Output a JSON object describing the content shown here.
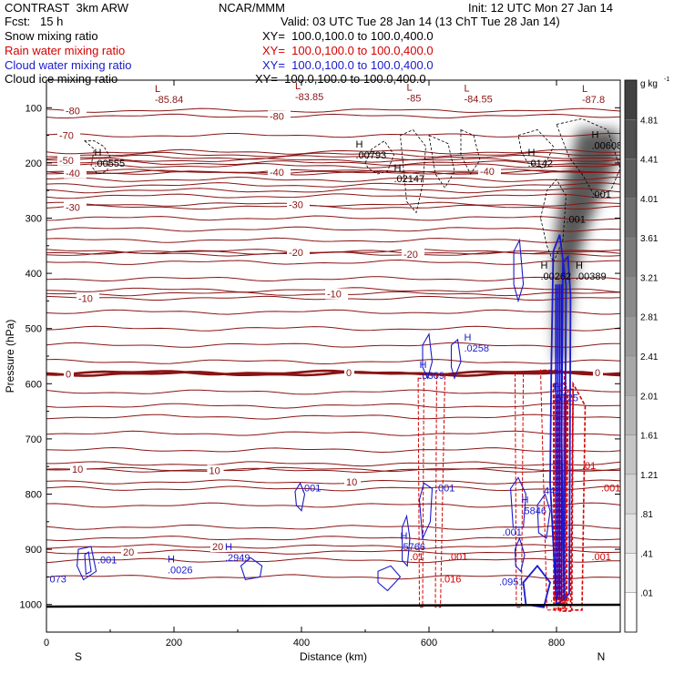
{
  "header": {
    "left1": "CONTRAST  3km ARW",
    "center1": "NCAR/MMM",
    "right1": "Init: 12 UTC Mon 27 Jan 14",
    "left2": "Fcst:   15 h",
    "right2": "Valid: 03 UTC Tue 28 Jan 14 (13 ChT Tue 28 Jan 14)",
    "fields": [
      {
        "name": "Snow mixing ratio",
        "xy": "XY=  100.0,100.0 to 100.0,400.0",
        "color": "#000000"
      },
      {
        "name": "Rain water mixing ratio",
        "xy": "XY=  100.0,100.0 to 100.0,400.0",
        "color": "#d40000"
      },
      {
        "name": "Cloud water mixing ratio",
        "xy": "XY=  100.0,100.0 to 100.0,400.0",
        "color": "#1a1acc"
      },
      {
        "name": "Cloud ice mixing ratio",
        "xy": "XY=  100.0,100.0 to 100.0,400.0",
        "color": "#000000"
      }
    ]
  },
  "chart_data": {
    "type": "contour cross-section",
    "xlabel": "Distance (km)",
    "ylabel": "Pressure (hPa)",
    "x_ticks": [
      0,
      200,
      400,
      600,
      800
    ],
    "y_ticks": [
      100,
      200,
      300,
      400,
      500,
      600,
      700,
      800,
      900,
      1000
    ],
    "xlim": [
      0,
      900
    ],
    "ylim": [
      1050,
      50
    ],
    "end_labels": {
      "left": "S",
      "right": "N"
    },
    "colorbar": {
      "unit_label": "g kg",
      "unit_exp": "-1",
      "labels": [
        "4.81",
        "4.41",
        "4.01",
        "3.61",
        "3.21",
        "2.81",
        "2.41",
        "2.01",
        "1.61",
        "1.21",
        ".81",
        ".41",
        ".01"
      ]
    },
    "temperature_contours": [
      {
        "p": 905,
        "label": "20",
        "label_x": 120
      },
      {
        "p": 895,
        "label": "20",
        "label_x": 260
      },
      {
        "p": 755,
        "label": "10",
        "label_x": 40
      },
      {
        "p": 757,
        "label": "10",
        "label_x": 255
      },
      {
        "p": 778,
        "label": "10",
        "label_x": 470
      },
      {
        "p": 582,
        "label": "0",
        "label_x": 30
      },
      {
        "p": 580,
        "label": "0",
        "label_x": 470
      },
      {
        "p": 580,
        "label": "0",
        "label_x": 860
      },
      {
        "p": 445,
        "label": "-10",
        "label_x": 50
      },
      {
        "p": 437,
        "label": "-10",
        "label_x": 440
      },
      {
        "p": 362,
        "label": "-20",
        "label_x": 380
      },
      {
        "p": 365,
        "label": "-20",
        "label_x": 560
      },
      {
        "p": 280,
        "label": "-30",
        "label_x": 30
      },
      {
        "p": 275,
        "label": "-30",
        "label_x": 380
      },
      {
        "p": 218,
        "label": "-40",
        "label_x": 30
      },
      {
        "p": 217,
        "label": "-40",
        "label_x": 350
      },
      {
        "p": 215,
        "label": "-40",
        "label_x": 680
      },
      {
        "p": 195,
        "label": "-50",
        "label_x": 20
      },
      {
        "p": 150,
        "label": "-70",
        "label_x": 20
      },
      {
        "p": 105,
        "label": "-80",
        "label_x": 30
      },
      {
        "p": 115,
        "label": "-80",
        "label_x": 350
      }
    ],
    "extrema": [
      {
        "kind": "L",
        "value": "-85.84",
        "x": 170,
        "p": 85
      },
      {
        "kind": "L",
        "value": "-83.85",
        "x": 390,
        "p": 80
      },
      {
        "kind": "L",
        "value": "-85",
        "x": 565,
        "p": 82
      },
      {
        "kind": "L",
        "value": "-84.55",
        "x": 655,
        "p": 84
      },
      {
        "kind": "L",
        "value": "-87.8",
        "x": 840,
        "p": 85
      },
      {
        "kind": "H",
        "value": ".00555",
        "x": 75,
        "p": 200,
        "color": "#000000"
      },
      {
        "kind": "H",
        "value": ".00793",
        "x": 485,
        "p": 185,
        "color": "#000000"
      },
      {
        "kind": "H",
        "value": ".02147",
        "x": 545,
        "p": 228,
        "color": "#000000"
      },
      {
        "kind": "H",
        "value": ".0142",
        "x": 755,
        "p": 200,
        "color": "#000000"
      },
      {
        "kind": "H",
        "value": ".00608",
        "x": 855,
        "p": 168,
        "color": "#000000"
      },
      {
        "kind": "H",
        "value": ".00262",
        "x": 775,
        "p": 405,
        "color": "#000000"
      },
      {
        "kind": "H",
        "value": ".00389",
        "x": 830,
        "p": 405,
        "color": "#000000"
      },
      {
        "kind": "H",
        "value": ".0309",
        "x": 585,
        "p": 585,
        "color": "#1a1acc"
      },
      {
        "kind": "H",
        "value": ".0258",
        "x": 655,
        "p": 535,
        "color": "#1a1acc"
      },
      {
        "kind": "H",
        "value": ".5725",
        "x": 795,
        "p": 625,
        "color": "#1a1acc"
      },
      {
        "kind": "H",
        "value": ".5766",
        "x": 555,
        "p": 895,
        "color": "#1a1acc"
      },
      {
        "kind": "H",
        "value": ".2949",
        "x": 280,
        "p": 915,
        "color": "#1a1acc"
      },
      {
        "kind": "H",
        "value": ".0026",
        "x": 190,
        "p": 937,
        "color": "#1a1acc"
      },
      {
        "kind": "H",
        "value": ".5846",
        "x": 745,
        "p": 830,
        "color": "#1a1acc"
      }
    ],
    "field_labels": [
      {
        "text": ".001",
        "x": 80,
        "p": 925,
        "color": "#1a1acc"
      },
      {
        "text": "073",
        "x": 5,
        "p": 960,
        "color": "#1a1acc"
      },
      {
        "text": ".001",
        "x": 400,
        "p": 795,
        "color": "#1a1acc"
      },
      {
        "text": ".001",
        "x": 610,
        "p": 795,
        "color": "#1a1acc"
      },
      {
        "text": ".001",
        "x": 715,
        "p": 875,
        "color": "#1a1acc"
      },
      {
        "text": ".0951",
        "x": 710,
        "p": 965,
        "color": "#1a1acc"
      },
      {
        "text": "446",
        "x": 780,
        "p": 800,
        "color": "#1a1acc"
      },
      {
        "text": ".001",
        "x": 855,
        "p": 263,
        "color": "#000000"
      },
      {
        "text": ".001",
        "x": 815,
        "p": 308,
        "color": "#000000"
      },
      {
        "text": ".01",
        "x": 570,
        "p": 920,
        "color": "#d40000"
      },
      {
        "text": ".001",
        "x": 630,
        "p": 920,
        "color": "#d40000"
      },
      {
        "text": ".016",
        "x": 620,
        "p": 960,
        "color": "#d40000"
      },
      {
        "text": ".001",
        "x": 870,
        "p": 795,
        "color": "#d40000"
      },
      {
        "text": ".01",
        "x": 840,
        "p": 755,
        "color": "#d40000"
      },
      {
        "text": ".001",
        "x": 855,
        "p": 920,
        "color": "#d40000"
      },
      {
        "text": ".005",
        "x": 790,
        "p": 995,
        "color": "#d40000"
      }
    ],
    "shading": {
      "name": "Snow mixing ratio",
      "peak": 3.0,
      "x_top": 865,
      "p_top": 140,
      "x_bottom": 805,
      "p_bottom": 560
    }
  }
}
